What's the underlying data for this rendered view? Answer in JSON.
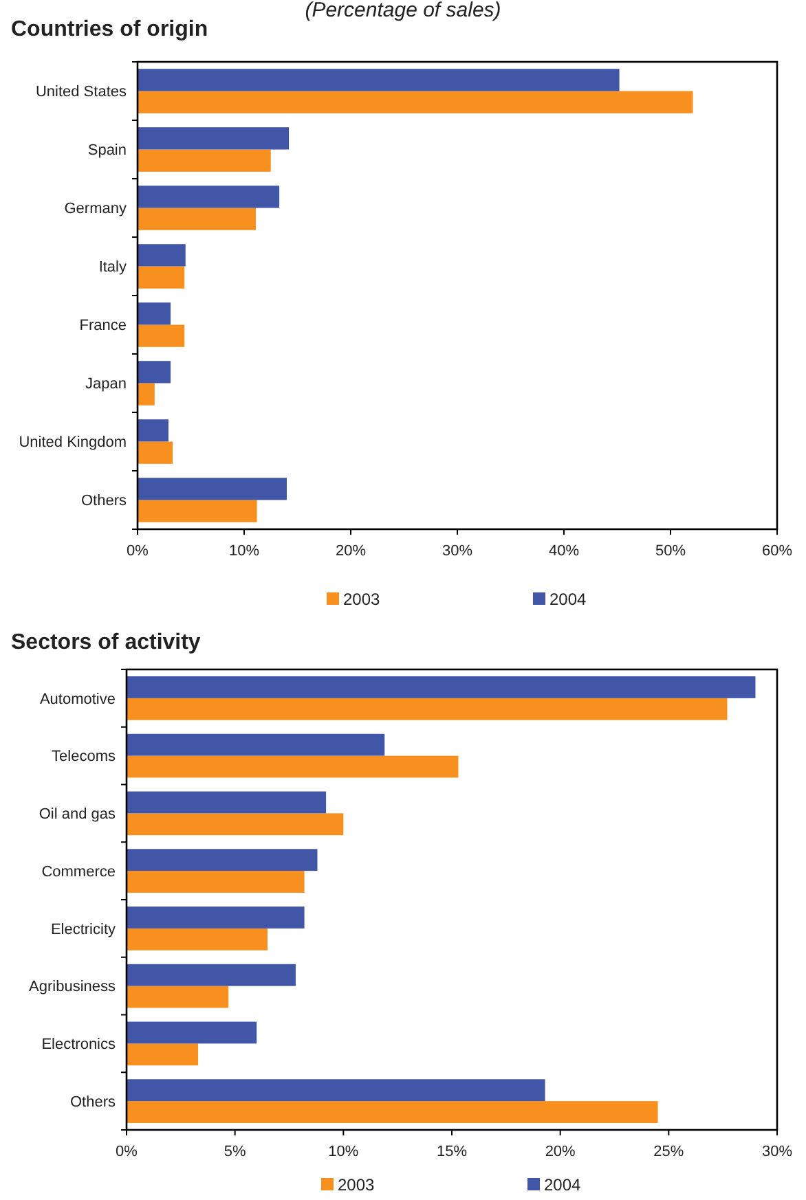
{
  "chart_data": [
    {
      "type": "bar",
      "orientation": "horizontal",
      "title": "Countries of origin",
      "subtitle": "(Percentage of sales)",
      "categories": [
        "United States",
        "Spain",
        "Germany",
        "Italy",
        "France",
        "Japan",
        "United Kingdom",
        "Others"
      ],
      "series": [
        {
          "name": "2003",
          "color": "#f7901e",
          "values": [
            52.1,
            12.5,
            11.1,
            4.4,
            4.4,
            1.6,
            3.3,
            11.2
          ]
        },
        {
          "name": "2004",
          "color": "#4156a6",
          "values": [
            45.2,
            14.2,
            13.3,
            4.5,
            3.1,
            3.1,
            2.9,
            14.0
          ]
        }
      ],
      "xlim": [
        0,
        60
      ],
      "xticks": [
        {
          "value": 0,
          "label": "0%"
        },
        {
          "value": 10,
          "label": "10%"
        },
        {
          "value": 20,
          "label": "20%"
        },
        {
          "value": 30,
          "label": "30%"
        },
        {
          "value": 40,
          "label": "40%"
        },
        {
          "value": 50,
          "label": "50%"
        },
        {
          "value": 60,
          "label": "60%"
        }
      ],
      "grid": false,
      "legend": "bottom"
    },
    {
      "type": "bar",
      "orientation": "horizontal",
      "title": "Sectors of activity",
      "categories": [
        "Automotive",
        "Telecoms",
        "Oil and gas",
        "Commerce",
        "Electricity",
        "Agribusiness",
        "Electronics",
        "Others"
      ],
      "series": [
        {
          "name": "2003",
          "color": "#f7901e",
          "values": [
            27.7,
            15.3,
            10.0,
            8.2,
            6.5,
            4.7,
            3.3,
            24.5
          ]
        },
        {
          "name": "2004",
          "color": "#4156a6",
          "values": [
            29.0,
            11.9,
            9.2,
            8.8,
            8.2,
            7.8,
            6.0,
            19.3
          ]
        }
      ],
      "xlim": [
        0,
        30
      ],
      "xticks": [
        {
          "value": 0,
          "label": "0%"
        },
        {
          "value": 5,
          "label": "5%"
        },
        {
          "value": 10,
          "label": "10%"
        },
        {
          "value": 15,
          "label": "15%"
        },
        {
          "value": 20,
          "label": "20%"
        },
        {
          "value": 25,
          "label": "25%"
        },
        {
          "value": 30,
          "label": "30%"
        }
      ],
      "grid": false,
      "legend": "bottom"
    }
  ]
}
